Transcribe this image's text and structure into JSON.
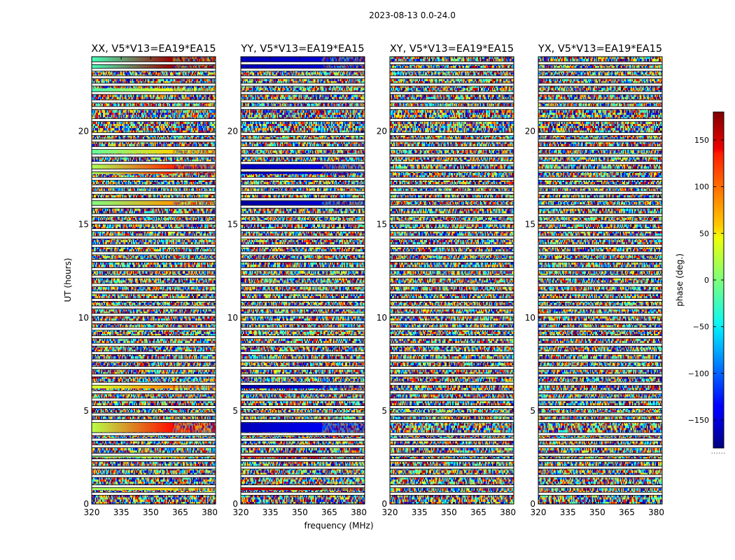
{
  "chart_data": {
    "type": "heatmap",
    "suptitle": "2023-08-13 0.0-24.0",
    "xlabel": "frequency (MHz)",
    "ylabel": "UT (hours)",
    "xlim": [
      320,
      383
    ],
    "ylim": [
      0,
      24
    ],
    "xticks": [
      320,
      335,
      350,
      365,
      380
    ],
    "yticks": [
      0,
      5,
      10,
      15,
      20
    ],
    "panels": [
      {
        "title": "XX, V5*V13=EA19*EA15",
        "pol": "XX"
      },
      {
        "title": "YY, V5*V13=EA19*EA15",
        "pol": "YY"
      },
      {
        "title": "XY, V5*V13=EA19*EA15",
        "pol": "XY"
      },
      {
        "title": "YX, V5*V13=EA19*EA15",
        "pol": "YX"
      }
    ],
    "colorbar": {
      "label": "phase (deg.)",
      "range": [
        -180,
        180
      ],
      "ticks": [
        150,
        100,
        50,
        0,
        -50,
        -100,
        -150
      ],
      "tick_labels": [
        "150",
        "100",
        "50",
        "0",
        "−50",
        "−100",
        "−150"
      ],
      "colormap": "jet",
      "bottom_mark": "......"
    },
    "flagged_time_gaps_hours": [
      0.55,
      0.95,
      1.5,
      1.95,
      2.35,
      2.65,
      3.1,
      3.45,
      3.75,
      4.45,
      4.8,
      5.2,
      5.6,
      6.0,
      6.45,
      6.9,
      7.3,
      7.7,
      8.1,
      8.55,
      8.95,
      9.4,
      9.75,
      10.15,
      10.55,
      10.95,
      11.35,
      11.75,
      12.2,
      12.6,
      13.05,
      13.45,
      13.85,
      14.3,
      14.7,
      15.1,
      15.5,
      15.95,
      16.35,
      16.7,
      17.05,
      17.45,
      17.9,
      18.3,
      18.7,
      19.1,
      19.5,
      19.85,
      20.6,
      21.25,
      21.6,
      22.05,
      22.5,
      22.9,
      23.3,
      23.65
    ],
    "coherent_phase_bands": [
      {
        "pol": "XX",
        "t0": 0.75,
        "t1": 0.95,
        "phase_start": 10,
        "phase_end": 60
      },
      {
        "pol": "XX",
        "t0": 2.5,
        "t1": 2.65,
        "phase_start": 0,
        "phase_end": 40
      },
      {
        "pol": "XX",
        "t0": 3.85,
        "t1": 4.5,
        "phase_start": 20,
        "phase_end": 130
      },
      {
        "pol": "XX",
        "t0": 6.2,
        "t1": 6.45,
        "phase_start": 30,
        "phase_end": 90
      },
      {
        "pol": "XX",
        "t0": 9.65,
        "t1": 9.8,
        "phase_start": 150,
        "phase_end": 175
      },
      {
        "pol": "XX",
        "t0": 15.9,
        "t1": 16.35,
        "phase_start": 0,
        "phase_end": 80
      },
      {
        "pol": "XX",
        "t0": 17.7,
        "t1": 18.3,
        "phase_start": 15,
        "phase_end": 120
      },
      {
        "pol": "XX",
        "t0": 18.8,
        "t1": 19.1,
        "phase_start": -10,
        "phase_end": 60
      },
      {
        "pol": "XX",
        "t0": 22.1,
        "t1": 22.3,
        "phase_start": -20,
        "phase_end": 40
      },
      {
        "pol": "XX",
        "t0": 23.3,
        "t1": 24.0,
        "phase_start": -20,
        "phase_end": 170
      },
      {
        "pol": "YY",
        "t0": 0.75,
        "t1": 0.95,
        "phase_start": 150,
        "phase_end": 175
      },
      {
        "pol": "YY",
        "t0": 2.5,
        "t1": 2.65,
        "phase_start": 140,
        "phase_end": 170
      },
      {
        "pol": "YY",
        "t0": 3.85,
        "t1": 4.5,
        "phase_start": -160,
        "phase_end": -140
      },
      {
        "pol": "YY",
        "t0": 6.2,
        "t1": 6.45,
        "phase_start": -165,
        "phase_end": -150
      },
      {
        "pol": "YY",
        "t0": 9.65,
        "t1": 9.8,
        "phase_start": -155,
        "phase_end": -140
      },
      {
        "pol": "YY",
        "t0": 15.9,
        "t1": 16.35,
        "phase_start": -170,
        "phase_end": -150
      },
      {
        "pol": "YY",
        "t0": 17.7,
        "t1": 18.3,
        "phase_start": -160,
        "phase_end": -145
      },
      {
        "pol": "YY",
        "t0": 23.3,
        "t1": 24.0,
        "phase_start": -160,
        "phase_end": -150
      }
    ]
  }
}
